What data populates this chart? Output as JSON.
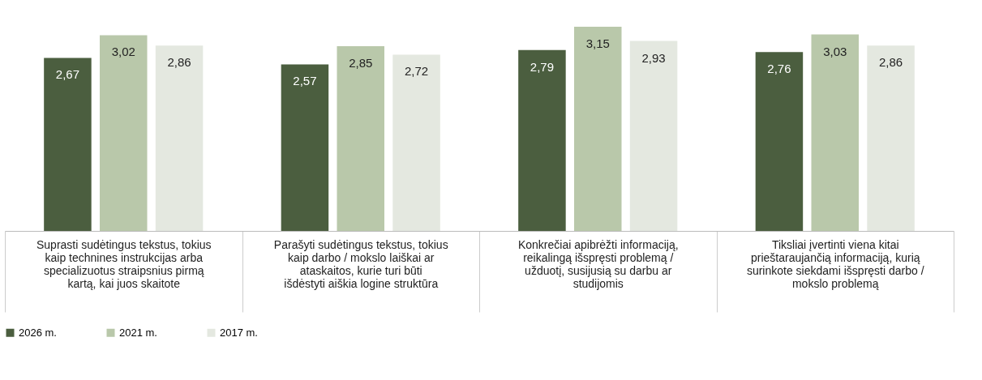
{
  "chart_data": {
    "type": "bar",
    "categories": [
      "Suprasti sudėtingus tekstus, tokius kaip technines instrukcijas arba specializuotus straipsnius pirmą kartą, kai juos skaitote",
      "Parašyti sudėtingus tekstus, tokius kaip darbo / mokslo laiškai ar ataskaitos, kurie turi būti išdėstyti aiškia logine struktūra",
      "Konkrečiai apibrėžti informaciją, reikalingą išspręsti problemą / užduotį, susijusią su darbu ar studijomis",
      "Tiksliai įvertinti viena kitai prieštaraujančią informaciją, kurią surinkote siekdami išspręsti darbo / mokslo problemą"
    ],
    "series": [
      {
        "name": "2026 m.",
        "color": "#4b5e3f",
        "values": [
          2.67,
          2.57,
          2.79,
          2.76
        ],
        "value_labels": [
          "2,67",
          "2,57",
          "2,79",
          "2,76"
        ]
      },
      {
        "name": "2021 m.",
        "color": "#b9c8aa",
        "values": [
          3.02,
          2.85,
          3.15,
          3.03
        ],
        "value_labels": [
          "3,02",
          "2,85",
          "3,15",
          "3,03"
        ]
      },
      {
        "name": "2017 m.",
        "color": "#e4e8e0",
        "values": [
          2.86,
          2.72,
          2.93,
          2.86
        ],
        "value_labels": [
          "2,86",
          "2,72",
          "2,93",
          "2,86"
        ]
      }
    ],
    "legend": "bottom",
    "grid": false
  }
}
